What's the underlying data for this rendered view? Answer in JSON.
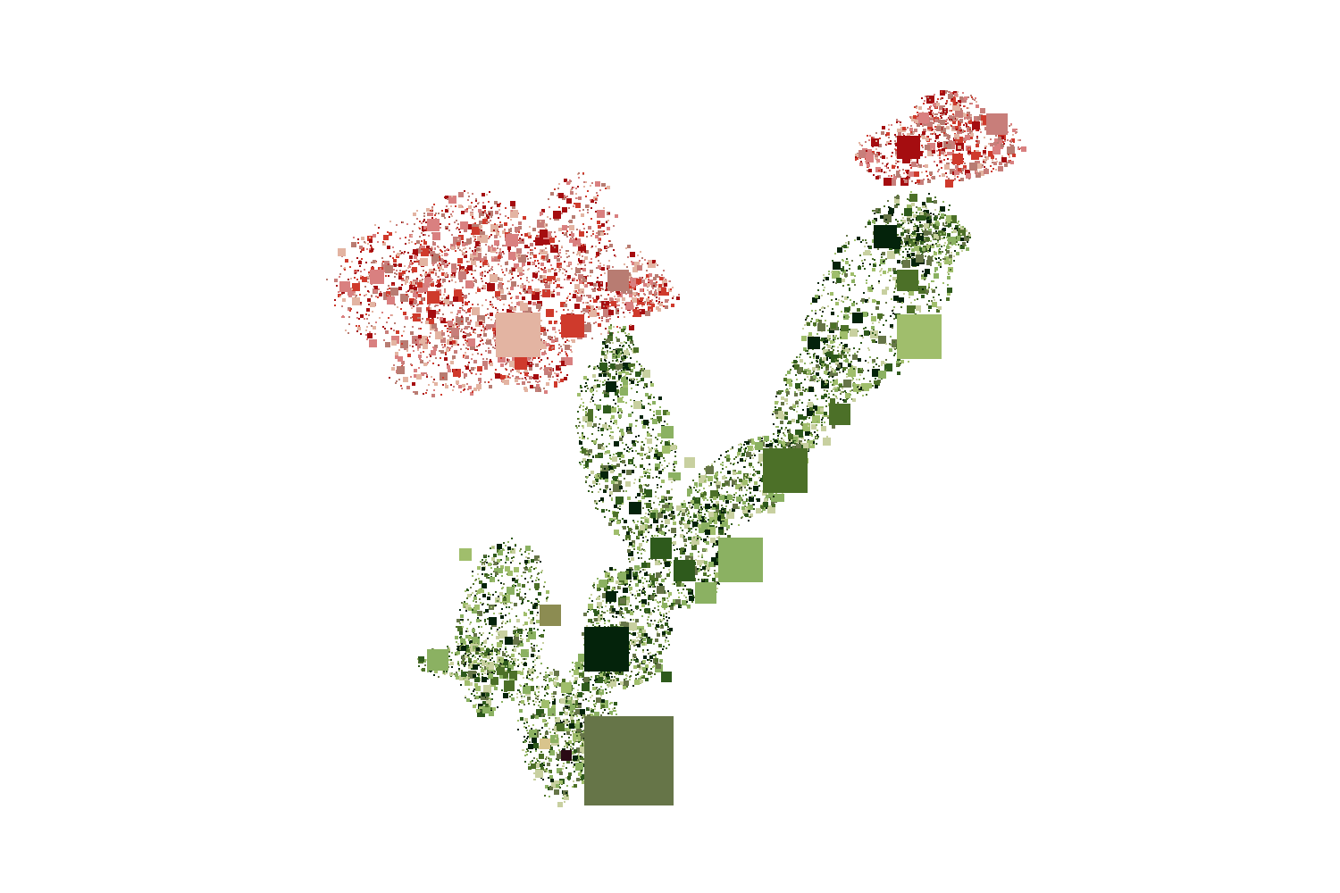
{
  "scene": {
    "subject": "pixel-mosaic-flowering-plant",
    "background": "#ffffff",
    "palette": {
      "petal_pale": "#e3b4a2",
      "petal_pink": "#d98080",
      "petal_rose": "#c87e7a",
      "petal_red": "#cf3a2c",
      "petal_deep": "#a50d10",
      "petal_brick": "#b87c72",
      "stem_dark": "#04230b",
      "stem_mid": "#2e5a1c",
      "stem_green": "#4c7028",
      "stem_light": "#8bb162",
      "stem_pale": "#a0be6c",
      "stem_olive": "#667548",
      "stem_khaki": "#8c8c52",
      "stem_sage": "#c8d0a0",
      "accent_tan": "#d8c48c",
      "accent_plum": "#2a0a14"
    }
  }
}
